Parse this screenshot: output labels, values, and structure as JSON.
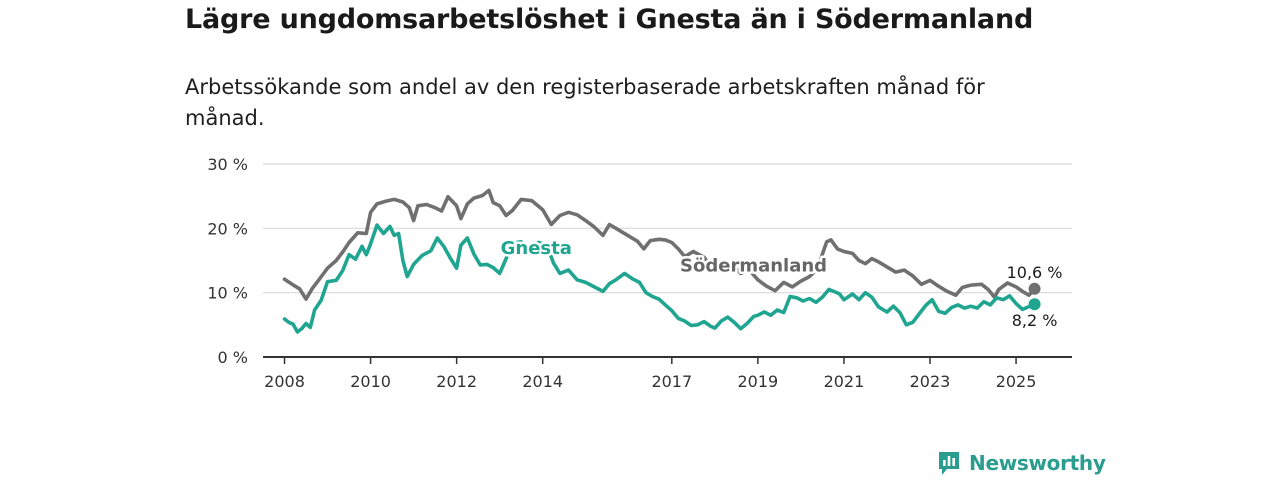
{
  "title": "Lägre ungdomsarbetslöshet i Gnesta än i Södermanland",
  "subtitle": "Arbetssökande som andel av den registerbaserade arbetskraften månad för månad.",
  "brand": {
    "name": "Newsworthy",
    "icon": "newsworthy-logo-icon",
    "color": "#2a9d8f"
  },
  "chart_data": {
    "type": "line",
    "x_unit": "year",
    "xlim": [
      2007.5,
      2026.3
    ],
    "ylim": [
      0,
      30
    ],
    "grid": true,
    "y_ticks": [
      {
        "value": 0,
        "label": "0 %"
      },
      {
        "value": 10,
        "label": "10 %"
      },
      {
        "value": 20,
        "label": "20 %"
      },
      {
        "value": 30,
        "label": "30 %"
      }
    ],
    "x_ticks": [
      {
        "value": 2008,
        "label": "2008"
      },
      {
        "value": 2010,
        "label": "2010"
      },
      {
        "value": 2012,
        "label": "2012"
      },
      {
        "value": 2014,
        "label": "2014"
      },
      {
        "value": 2017,
        "label": "2017"
      },
      {
        "value": 2019,
        "label": "2019"
      },
      {
        "value": 2021,
        "label": "2021"
      },
      {
        "value": 2023,
        "label": "2023"
      },
      {
        "value": 2025,
        "label": "2025"
      }
    ],
    "series": [
      {
        "name": "Södermanland",
        "color": "#707070",
        "label_color": "#666666",
        "end_label": "10,6 %",
        "points": [
          [
            2008.0,
            12.1
          ],
          [
            2008.2,
            11.2
          ],
          [
            2008.35,
            10.6
          ],
          [
            2008.5,
            9.0
          ],
          [
            2008.65,
            10.7
          ],
          [
            2008.8,
            12.0
          ],
          [
            2009.0,
            13.8
          ],
          [
            2009.2,
            15.0
          ],
          [
            2009.35,
            16.3
          ],
          [
            2009.5,
            17.8
          ],
          [
            2009.7,
            19.3
          ],
          [
            2009.9,
            19.2
          ],
          [
            2010.0,
            22.5
          ],
          [
            2010.15,
            23.8
          ],
          [
            2010.35,
            24.2
          ],
          [
            2010.55,
            24.5
          ],
          [
            2010.75,
            24.1
          ],
          [
            2010.9,
            23.2
          ],
          [
            2011.0,
            21.2
          ],
          [
            2011.1,
            23.5
          ],
          [
            2011.3,
            23.7
          ],
          [
            2011.5,
            23.2
          ],
          [
            2011.65,
            22.7
          ],
          [
            2011.8,
            24.9
          ],
          [
            2012.0,
            23.5
          ],
          [
            2012.1,
            21.5
          ],
          [
            2012.25,
            23.8
          ],
          [
            2012.4,
            24.7
          ],
          [
            2012.6,
            25.1
          ],
          [
            2012.75,
            25.9
          ],
          [
            2012.85,
            24.0
          ],
          [
            2013.0,
            23.5
          ],
          [
            2013.15,
            22.0
          ],
          [
            2013.3,
            22.8
          ],
          [
            2013.5,
            24.5
          ],
          [
            2013.75,
            24.3
          ],
          [
            2014.0,
            22.9
          ],
          [
            2014.2,
            20.6
          ],
          [
            2014.4,
            22.0
          ],
          [
            2014.6,
            22.5
          ],
          [
            2014.8,
            22.1
          ],
          [
            2015.0,
            21.2
          ],
          [
            2015.2,
            20.2
          ],
          [
            2015.4,
            18.9
          ],
          [
            2015.55,
            20.6
          ],
          [
            2015.7,
            20.0
          ],
          [
            2015.85,
            19.4
          ],
          [
            2016.0,
            18.8
          ],
          [
            2016.2,
            18.0
          ],
          [
            2016.35,
            16.8
          ],
          [
            2016.5,
            18.1
          ],
          [
            2016.7,
            18.3
          ],
          [
            2016.85,
            18.2
          ],
          [
            2017.0,
            17.8
          ],
          [
            2017.15,
            16.8
          ],
          [
            2017.3,
            15.6
          ],
          [
            2017.5,
            16.4
          ],
          [
            2017.75,
            15.5
          ],
          [
            2018.0,
            13.2
          ],
          [
            2018.2,
            14.0
          ],
          [
            2018.4,
            14.5
          ],
          [
            2018.6,
            13.0
          ],
          [
            2018.8,
            13.5
          ],
          [
            2019.0,
            12.0
          ],
          [
            2019.2,
            11.0
          ],
          [
            2019.4,
            10.3
          ],
          [
            2019.6,
            11.6
          ],
          [
            2019.8,
            10.9
          ],
          [
            2020.0,
            11.8
          ],
          [
            2020.2,
            12.5
          ],
          [
            2020.4,
            13.8
          ],
          [
            2020.5,
            16.0
          ],
          [
            2020.6,
            17.9
          ],
          [
            2020.7,
            18.2
          ],
          [
            2020.85,
            16.8
          ],
          [
            2021.0,
            16.4
          ],
          [
            2021.2,
            16.1
          ],
          [
            2021.35,
            15.0
          ],
          [
            2021.5,
            14.5
          ],
          [
            2021.65,
            15.3
          ],
          [
            2021.8,
            14.8
          ],
          [
            2022.0,
            14.0
          ],
          [
            2022.2,
            13.2
          ],
          [
            2022.4,
            13.5
          ],
          [
            2022.6,
            12.6
          ],
          [
            2022.8,
            11.3
          ],
          [
            2023.0,
            11.9
          ],
          [
            2023.2,
            11.0
          ],
          [
            2023.4,
            10.2
          ],
          [
            2023.6,
            9.6
          ],
          [
            2023.75,
            10.8
          ],
          [
            2023.9,
            11.1
          ],
          [
            2024.0,
            11.2
          ],
          [
            2024.2,
            11.3
          ],
          [
            2024.35,
            10.5
          ],
          [
            2024.5,
            9.3
          ],
          [
            2024.6,
            10.5
          ],
          [
            2024.8,
            11.5
          ],
          [
            2025.0,
            10.9
          ],
          [
            2025.15,
            10.2
          ],
          [
            2025.3,
            9.6
          ],
          [
            2025.43,
            10.6
          ]
        ]
      },
      {
        "name": "Gnesta",
        "color": "#1fa590",
        "label_color": "#1fa590",
        "end_label": "8,2 %",
        "points": [
          [
            2008.0,
            5.9
          ],
          [
            2008.1,
            5.4
          ],
          [
            2008.2,
            5.1
          ],
          [
            2008.3,
            3.9
          ],
          [
            2008.4,
            4.4
          ],
          [
            2008.5,
            5.2
          ],
          [
            2008.6,
            4.6
          ],
          [
            2008.7,
            7.3
          ],
          [
            2008.85,
            8.8
          ],
          [
            2009.0,
            11.7
          ],
          [
            2009.2,
            11.9
          ],
          [
            2009.35,
            13.4
          ],
          [
            2009.5,
            15.9
          ],
          [
            2009.65,
            15.2
          ],
          [
            2009.8,
            17.2
          ],
          [
            2009.9,
            15.9
          ],
          [
            2010.0,
            17.6
          ],
          [
            2010.15,
            20.5
          ],
          [
            2010.3,
            19.2
          ],
          [
            2010.45,
            20.3
          ],
          [
            2010.55,
            18.9
          ],
          [
            2010.65,
            19.2
          ],
          [
            2010.75,
            15.0
          ],
          [
            2010.85,
            12.5
          ],
          [
            2011.0,
            14.4
          ],
          [
            2011.2,
            15.8
          ],
          [
            2011.4,
            16.5
          ],
          [
            2011.55,
            18.5
          ],
          [
            2011.7,
            17.2
          ],
          [
            2011.85,
            15.4
          ],
          [
            2012.0,
            13.8
          ],
          [
            2012.1,
            17.4
          ],
          [
            2012.25,
            18.5
          ],
          [
            2012.4,
            16.0
          ],
          [
            2012.55,
            14.3
          ],
          [
            2012.7,
            14.4
          ],
          [
            2012.85,
            13.9
          ],
          [
            2013.0,
            13.0
          ],
          [
            2013.15,
            15.3
          ],
          [
            2013.3,
            17.7
          ],
          [
            2013.5,
            17.9
          ],
          [
            2013.7,
            16.3
          ],
          [
            2013.9,
            17.8
          ],
          [
            2014.1,
            17.4
          ],
          [
            2014.25,
            14.6
          ],
          [
            2014.4,
            13.0
          ],
          [
            2014.6,
            13.5
          ],
          [
            2014.8,
            12.0
          ],
          [
            2015.0,
            11.6
          ],
          [
            2015.2,
            10.9
          ],
          [
            2015.4,
            10.2
          ],
          [
            2015.55,
            11.4
          ],
          [
            2015.7,
            12.0
          ],
          [
            2015.9,
            13.0
          ],
          [
            2016.1,
            12.1
          ],
          [
            2016.25,
            11.6
          ],
          [
            2016.4,
            10.0
          ],
          [
            2016.55,
            9.4
          ],
          [
            2016.7,
            9.0
          ],
          [
            2016.85,
            8.1
          ],
          [
            2017.0,
            7.2
          ],
          [
            2017.15,
            6.0
          ],
          [
            2017.3,
            5.6
          ],
          [
            2017.45,
            4.9
          ],
          [
            2017.6,
            5.0
          ],
          [
            2017.75,
            5.5
          ],
          [
            2017.9,
            4.8
          ],
          [
            2018.0,
            4.5
          ],
          [
            2018.15,
            5.6
          ],
          [
            2018.3,
            6.2
          ],
          [
            2018.45,
            5.4
          ],
          [
            2018.6,
            4.4
          ],
          [
            2018.75,
            5.2
          ],
          [
            2018.9,
            6.3
          ],
          [
            2019.0,
            6.5
          ],
          [
            2019.15,
            7.0
          ],
          [
            2019.3,
            6.5
          ],
          [
            2019.45,
            7.3
          ],
          [
            2019.6,
            6.9
          ],
          [
            2019.75,
            9.4
          ],
          [
            2019.9,
            9.2
          ],
          [
            2020.05,
            8.7
          ],
          [
            2020.2,
            9.1
          ],
          [
            2020.35,
            8.5
          ],
          [
            2020.5,
            9.3
          ],
          [
            2020.65,
            10.5
          ],
          [
            2020.8,
            10.1
          ],
          [
            2020.9,
            9.8
          ],
          [
            2021.0,
            8.9
          ],
          [
            2021.2,
            9.8
          ],
          [
            2021.35,
            8.9
          ],
          [
            2021.5,
            10.0
          ],
          [
            2021.65,
            9.3
          ],
          [
            2021.8,
            7.8
          ],
          [
            2022.0,
            7.0
          ],
          [
            2022.15,
            7.9
          ],
          [
            2022.3,
            6.9
          ],
          [
            2022.45,
            5.0
          ],
          [
            2022.6,
            5.4
          ],
          [
            2022.75,
            6.7
          ],
          [
            2022.9,
            8.0
          ],
          [
            2023.05,
            8.9
          ],
          [
            2023.2,
            7.1
          ],
          [
            2023.35,
            6.8
          ],
          [
            2023.5,
            7.7
          ],
          [
            2023.65,
            8.1
          ],
          [
            2023.8,
            7.6
          ],
          [
            2023.95,
            7.9
          ],
          [
            2024.1,
            7.6
          ],
          [
            2024.25,
            8.6
          ],
          [
            2024.4,
            8.1
          ],
          [
            2024.55,
            9.2
          ],
          [
            2024.7,
            8.9
          ],
          [
            2024.85,
            9.5
          ],
          [
            2025.0,
            8.3
          ],
          [
            2025.15,
            7.4
          ],
          [
            2025.43,
            8.2
          ]
        ]
      }
    ],
    "annotations": [
      {
        "text": "Gnesta",
        "series": "Gnesta",
        "x": 2013.85,
        "y": 16.0
      },
      {
        "text": "Södermanland",
        "series": "Södermanland",
        "x": 2018.9,
        "y": 13.3
      }
    ]
  }
}
